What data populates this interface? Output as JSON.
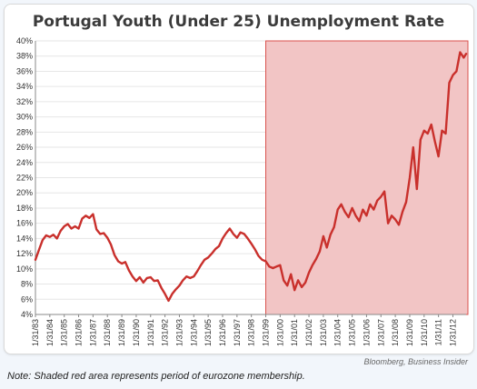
{
  "chart_data": {
    "type": "line",
    "title": "Portugal Youth (Under 25) Unemployment Rate",
    "xlabel": "",
    "ylabel": "",
    "ylim": [
      4,
      40
    ],
    "yticks": [
      "4%",
      "6%",
      "8%",
      "10%",
      "12%",
      "14%",
      "16%",
      "18%",
      "20%",
      "22%",
      "24%",
      "26%",
      "28%",
      "30%",
      "32%",
      "34%",
      "36%",
      "38%",
      "40%"
    ],
    "xtick_labels": [
      "1/31/83",
      "1/31/84",
      "1/31/85",
      "1/31/86",
      "1/31/87",
      "1/31/88",
      "1/31/89",
      "1/31/90",
      "1/31/91",
      "1/31/92",
      "1/31/93",
      "1/31/94",
      "1/31/95",
      "1/31/96",
      "1/31/97",
      "1/31/98",
      "1/31/99",
      "1/31/00",
      "1/31/01",
      "1/31/02",
      "1/31/03",
      "1/31/04",
      "1/31/05",
      "1/31/06",
      "1/31/07",
      "1/31/08",
      "1/31/09",
      "1/31/10",
      "1/31/11",
      "1/31/12"
    ],
    "x_range": [
      "1983-01-31",
      "2012-12-31"
    ],
    "shaded_region": {
      "start": "1999-01-31",
      "end": "2012-12-31",
      "color": "#f2c5c5",
      "edge_color": "#d9534f"
    },
    "series": [
      {
        "color": "#c9302c",
        "points": [
          [
            "1983-01-31",
            11.2
          ],
          [
            "1983-04-30",
            12.5
          ],
          [
            "1983-07-31",
            13.8
          ],
          [
            "1983-10-31",
            14.4
          ],
          [
            "1984-01-31",
            14.2
          ],
          [
            "1984-04-30",
            14.5
          ],
          [
            "1984-07-31",
            14.0
          ],
          [
            "1984-10-31",
            15.0
          ],
          [
            "1985-01-31",
            15.6
          ],
          [
            "1985-04-30",
            15.9
          ],
          [
            "1985-07-31",
            15.3
          ],
          [
            "1985-10-31",
            15.6
          ],
          [
            "1986-01-31",
            15.3
          ],
          [
            "1986-04-30",
            16.6
          ],
          [
            "1986-07-31",
            17.0
          ],
          [
            "1986-10-31",
            16.7
          ],
          [
            "1987-01-31",
            17.2
          ],
          [
            "1987-04-30",
            15.2
          ],
          [
            "1987-07-31",
            14.6
          ],
          [
            "1987-10-31",
            14.7
          ],
          [
            "1988-01-31",
            14.1
          ],
          [
            "1988-04-30",
            13.2
          ],
          [
            "1988-07-31",
            11.8
          ],
          [
            "1988-10-31",
            11.0
          ],
          [
            "1989-01-31",
            10.7
          ],
          [
            "1989-04-30",
            10.9
          ],
          [
            "1989-07-31",
            9.8
          ],
          [
            "1989-10-31",
            9.0
          ],
          [
            "1990-01-31",
            8.4
          ],
          [
            "1990-04-30",
            8.9
          ],
          [
            "1990-07-31",
            8.2
          ],
          [
            "1990-10-31",
            8.8
          ],
          [
            "1991-01-31",
            8.9
          ],
          [
            "1991-04-30",
            8.4
          ],
          [
            "1991-07-31",
            8.5
          ],
          [
            "1991-10-31",
            7.5
          ],
          [
            "1992-01-31",
            6.7
          ],
          [
            "1992-04-30",
            5.8
          ],
          [
            "1992-07-31",
            6.7
          ],
          [
            "1992-10-31",
            7.3
          ],
          [
            "1993-01-31",
            7.8
          ],
          [
            "1993-04-30",
            8.5
          ],
          [
            "1993-07-31",
            9.0
          ],
          [
            "1993-10-31",
            8.8
          ],
          [
            "1994-01-31",
            9.0
          ],
          [
            "1994-04-30",
            9.7
          ],
          [
            "1994-07-31",
            10.5
          ],
          [
            "1994-10-31",
            11.2
          ],
          [
            "1995-01-31",
            11.5
          ],
          [
            "1995-04-30",
            12.0
          ],
          [
            "1995-07-31",
            12.6
          ],
          [
            "1995-10-31",
            13.0
          ],
          [
            "1996-01-31",
            14.0
          ],
          [
            "1996-04-30",
            14.7
          ],
          [
            "1996-07-31",
            15.3
          ],
          [
            "1996-10-31",
            14.6
          ],
          [
            "1997-01-31",
            14.1
          ],
          [
            "1997-04-30",
            14.8
          ],
          [
            "1997-07-31",
            14.6
          ],
          [
            "1997-10-31",
            14.0
          ],
          [
            "1998-01-31",
            13.3
          ],
          [
            "1998-04-30",
            12.6
          ],
          [
            "1998-07-31",
            11.7
          ],
          [
            "1998-10-31",
            11.2
          ],
          [
            "1999-01-31",
            11.0
          ],
          [
            "1999-04-30",
            10.3
          ],
          [
            "1999-07-31",
            10.1
          ],
          [
            "1999-10-31",
            10.3
          ],
          [
            "2000-01-31",
            10.5
          ],
          [
            "2000-04-30",
            8.5
          ],
          [
            "2000-07-31",
            7.8
          ],
          [
            "2000-10-31",
            9.3
          ],
          [
            "2001-01-31",
            7.2
          ],
          [
            "2001-04-30",
            8.5
          ],
          [
            "2001-07-31",
            7.6
          ],
          [
            "2001-10-31",
            8.2
          ],
          [
            "2002-01-31",
            9.5
          ],
          [
            "2002-04-30",
            10.5
          ],
          [
            "2002-07-31",
            11.3
          ],
          [
            "2002-10-31",
            12.3
          ],
          [
            "2003-01-31",
            14.3
          ],
          [
            "2003-04-30",
            12.8
          ],
          [
            "2003-07-31",
            14.5
          ],
          [
            "2003-10-31",
            15.5
          ],
          [
            "2004-01-31",
            17.8
          ],
          [
            "2004-04-30",
            18.5
          ],
          [
            "2004-07-31",
            17.5
          ],
          [
            "2004-10-31",
            16.8
          ],
          [
            "2005-01-31",
            18.0
          ],
          [
            "2005-04-30",
            17.0
          ],
          [
            "2005-07-31",
            16.3
          ],
          [
            "2005-10-31",
            17.8
          ],
          [
            "2006-01-31",
            17.0
          ],
          [
            "2006-04-30",
            18.5
          ],
          [
            "2006-07-31",
            17.8
          ],
          [
            "2006-10-31",
            19.0
          ],
          [
            "2007-01-31",
            19.5
          ],
          [
            "2007-04-30",
            20.2
          ],
          [
            "2007-07-31",
            16.0
          ],
          [
            "2007-10-31",
            17.0
          ],
          [
            "2008-01-31",
            16.5
          ],
          [
            "2008-04-30",
            15.8
          ],
          [
            "2008-07-31",
            17.5
          ],
          [
            "2008-10-31",
            18.8
          ],
          [
            "2009-01-31",
            22.0
          ],
          [
            "2009-04-30",
            26.0
          ],
          [
            "2009-07-31",
            20.5
          ],
          [
            "2009-10-31",
            27.0
          ],
          [
            "2010-01-31",
            28.2
          ],
          [
            "2010-04-30",
            27.8
          ],
          [
            "2010-07-31",
            29.0
          ],
          [
            "2010-10-31",
            26.8
          ],
          [
            "2011-01-31",
            24.8
          ],
          [
            "2011-04-30",
            28.2
          ],
          [
            "2011-07-31",
            27.8
          ],
          [
            "2011-10-31",
            34.5
          ],
          [
            "2012-01-31",
            35.5
          ],
          [
            "2012-04-30",
            36.0
          ],
          [
            "2012-07-31",
            38.5
          ],
          [
            "2012-10-31",
            37.8
          ],
          [
            "2012-12-31",
            38.3
          ]
        ]
      }
    ]
  },
  "source": "Bloomberg, Business Insider",
  "note": "Note: Shaded red area represents period of eurozone membership."
}
